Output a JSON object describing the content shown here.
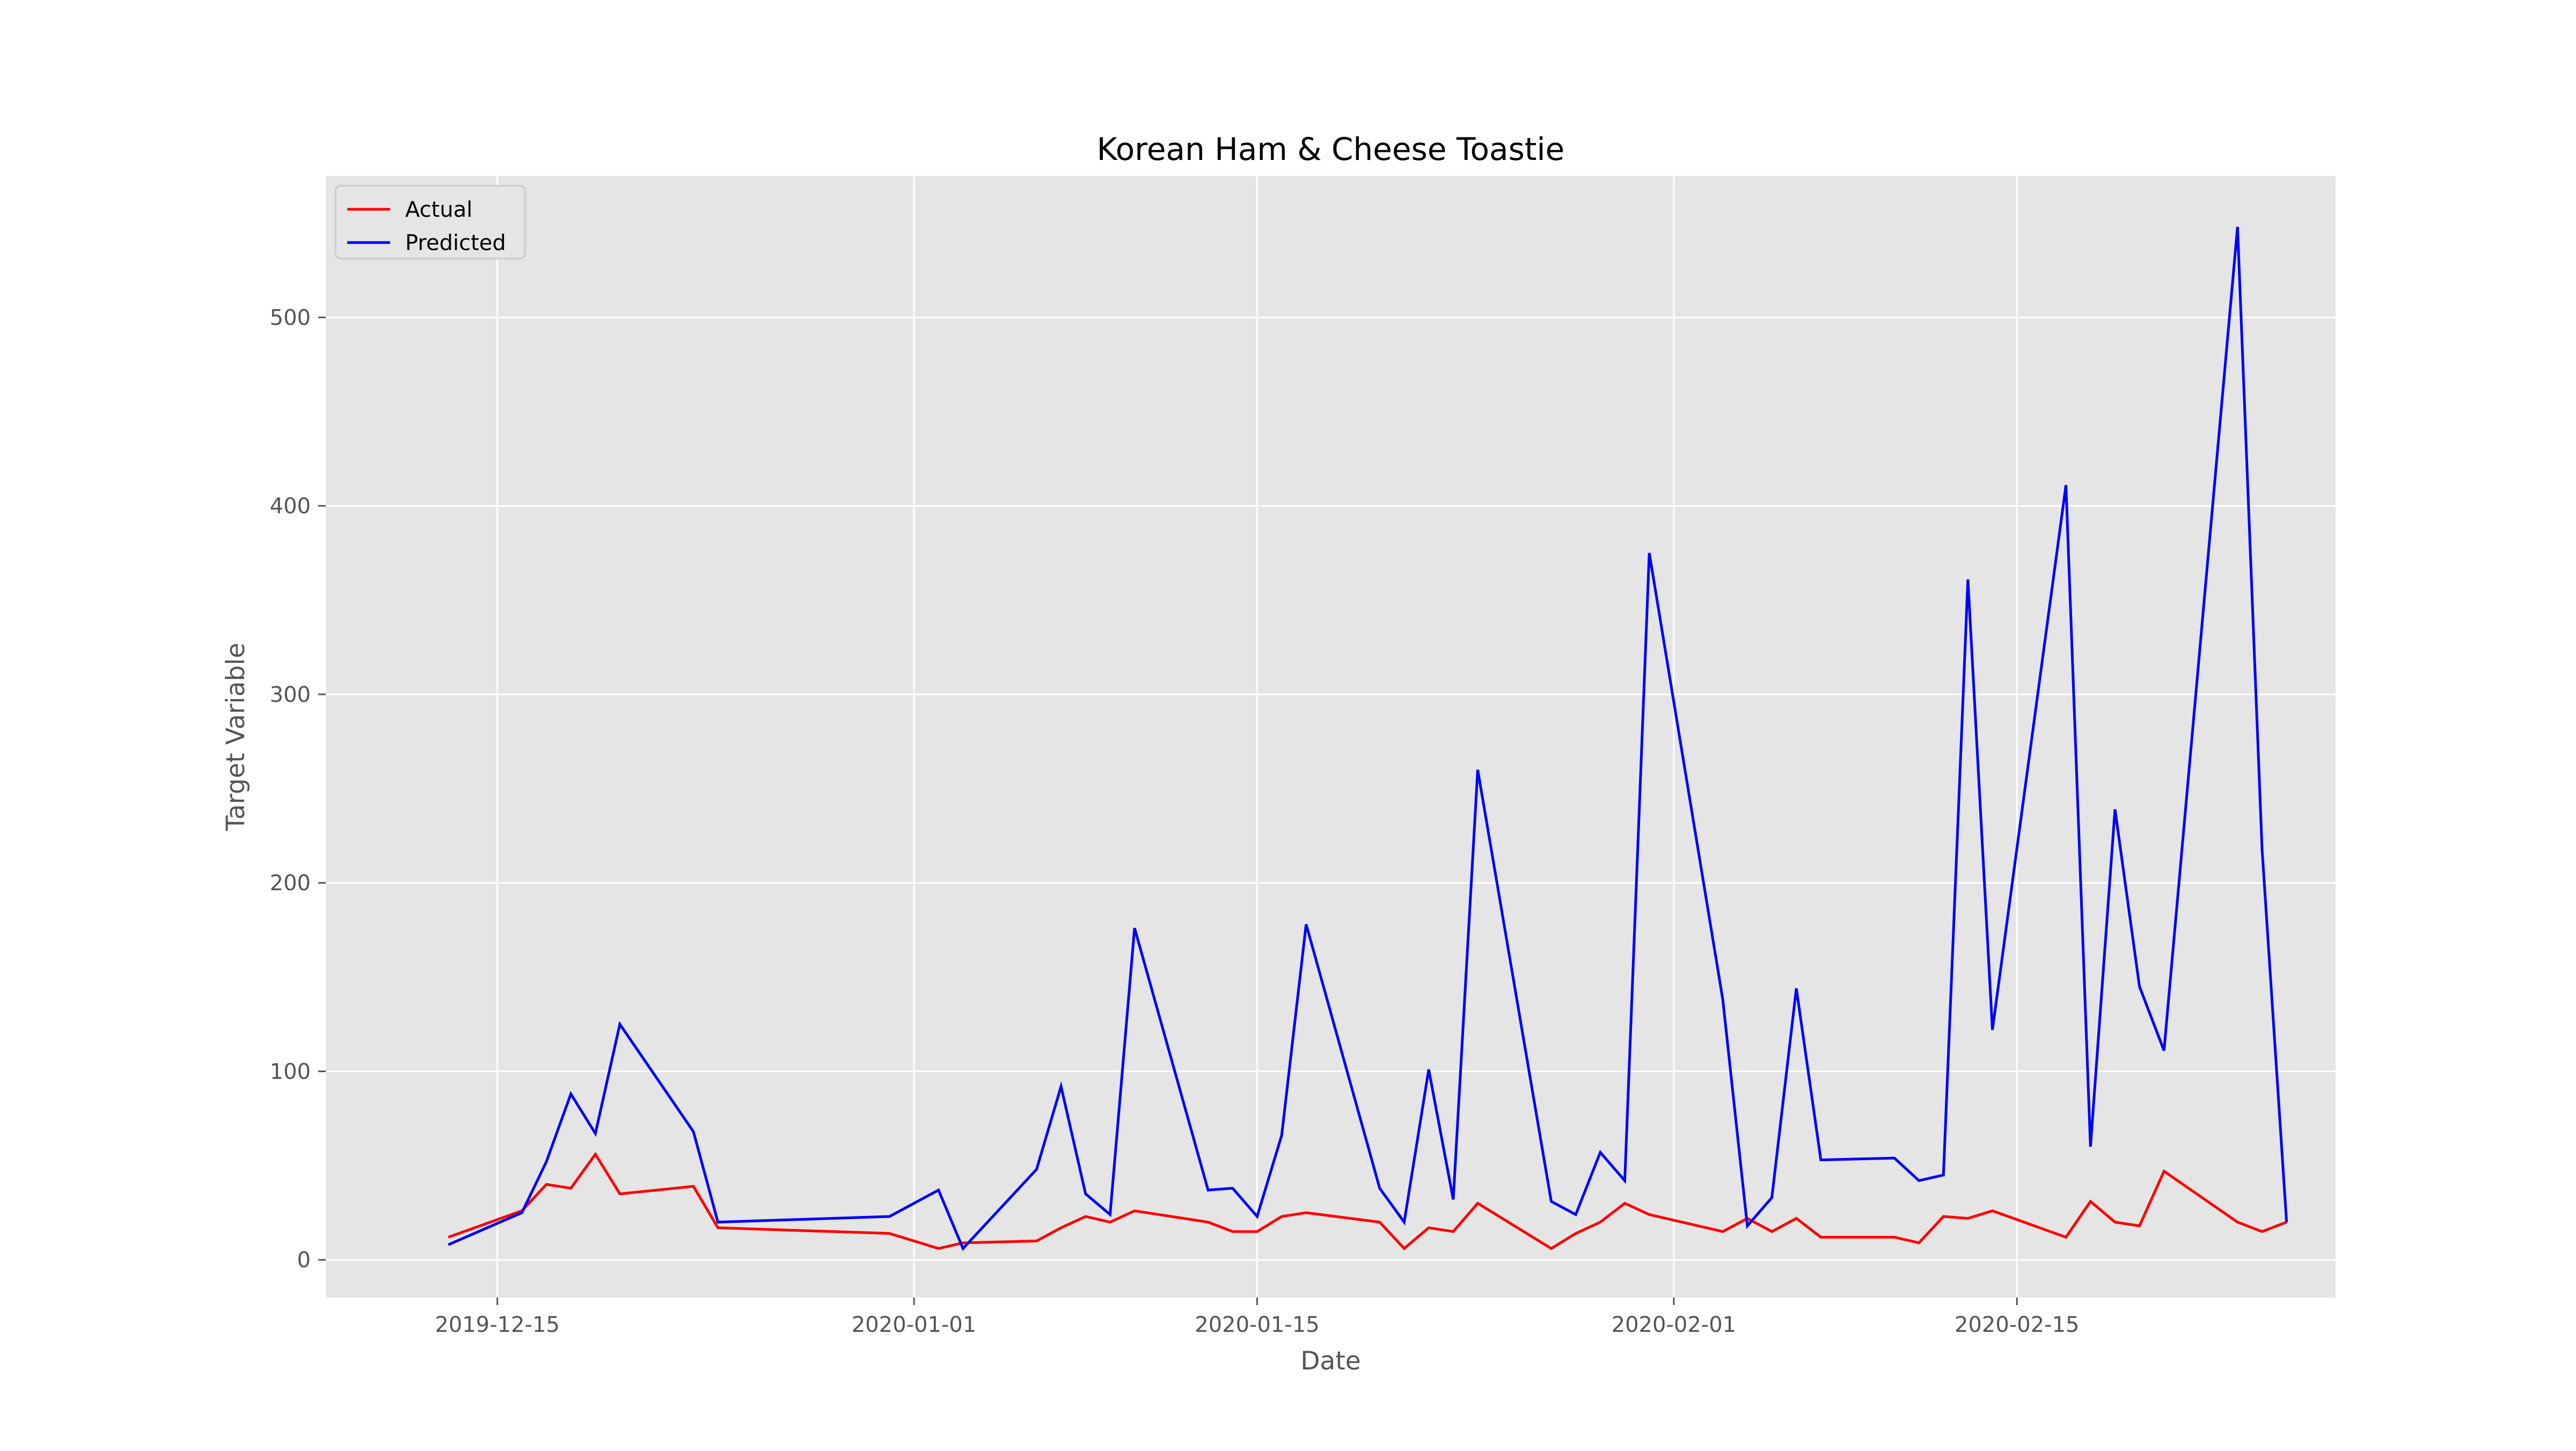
{
  "chart_data": {
    "type": "line",
    "title": "Korean Ham & Cheese Toastie",
    "xlabel": "Date",
    "ylabel": "Target Variable",
    "xlim": [
      "2019-12-08",
      "2020-02-28"
    ],
    "ylim": [
      -20,
      575
    ],
    "x_ticks": [
      "2019-12-15",
      "2020-01-01",
      "2020-01-15",
      "2020-02-01",
      "2020-02-15"
    ],
    "y_ticks": [
      0,
      100,
      200,
      300,
      400,
      500
    ],
    "grid": true,
    "legend": "top-left",
    "series": [
      {
        "name": "Actual",
        "color": "#ff0000",
        "points": [
          [
            "2019-12-13",
            12
          ],
          [
            "2019-12-16",
            26
          ],
          [
            "2019-12-17",
            40
          ],
          [
            "2019-12-18",
            38
          ],
          [
            "2019-12-19",
            56
          ],
          [
            "2019-12-20",
            35
          ],
          [
            "2019-12-23",
            39
          ],
          [
            "2019-12-24",
            17
          ],
          [
            "2019-12-31",
            14
          ],
          [
            "2020-01-02",
            6
          ],
          [
            "2020-01-03",
            9
          ],
          [
            "2020-01-06",
            10
          ],
          [
            "2020-01-07",
            17
          ],
          [
            "2020-01-08",
            23
          ],
          [
            "2020-01-09",
            20
          ],
          [
            "2020-01-10",
            26
          ],
          [
            "2020-01-13",
            20
          ],
          [
            "2020-01-14",
            15
          ],
          [
            "2020-01-15",
            15
          ],
          [
            "2020-01-16",
            23
          ],
          [
            "2020-01-17",
            25
          ],
          [
            "2020-01-20",
            20
          ],
          [
            "2020-01-21",
            6
          ],
          [
            "2020-01-22",
            17
          ],
          [
            "2020-01-23",
            15
          ],
          [
            "2020-01-24",
            30
          ],
          [
            "2020-01-27",
            6
          ],
          [
            "2020-01-28",
            14
          ],
          [
            "2020-01-29",
            20
          ],
          [
            "2020-01-30",
            30
          ],
          [
            "2020-01-31",
            24
          ],
          [
            "2020-02-03",
            15
          ],
          [
            "2020-02-04",
            22
          ],
          [
            "2020-02-05",
            15
          ],
          [
            "2020-02-06",
            22
          ],
          [
            "2020-02-07",
            12
          ],
          [
            "2020-02-10",
            12
          ],
          [
            "2020-02-11",
            9
          ],
          [
            "2020-02-12",
            23
          ],
          [
            "2020-02-13",
            22
          ],
          [
            "2020-02-14",
            26
          ],
          [
            "2020-02-17",
            12
          ],
          [
            "2020-02-18",
            31
          ],
          [
            "2020-02-19",
            20
          ],
          [
            "2020-02-20",
            18
          ],
          [
            "2020-02-21",
            47
          ],
          [
            "2020-02-24",
            20
          ],
          [
            "2020-02-25",
            15
          ],
          [
            "2020-02-26",
            20
          ]
        ]
      },
      {
        "name": "Predicted",
        "color": "#0000ff",
        "points": [
          [
            "2019-12-13",
            8
          ],
          [
            "2019-12-16",
            25
          ],
          [
            "2019-12-17",
            52
          ],
          [
            "2019-12-18",
            88
          ],
          [
            "2019-12-19",
            67
          ],
          [
            "2019-12-20",
            125
          ],
          [
            "2019-12-23",
            68
          ],
          [
            "2019-12-24",
            20
          ],
          [
            "2019-12-31",
            23
          ],
          [
            "2020-01-02",
            37
          ],
          [
            "2020-01-03",
            6
          ],
          [
            "2020-01-06",
            48
          ],
          [
            "2020-01-07",
            92
          ],
          [
            "2020-01-08",
            35
          ],
          [
            "2020-01-09",
            24
          ],
          [
            "2020-01-10",
            176
          ],
          [
            "2020-01-13",
            37
          ],
          [
            "2020-01-14",
            38
          ],
          [
            "2020-01-15",
            23
          ],
          [
            "2020-01-16",
            66
          ],
          [
            "2020-01-17",
            178
          ],
          [
            "2020-01-20",
            38
          ],
          [
            "2020-01-21",
            20
          ],
          [
            "2020-01-22",
            101
          ],
          [
            "2020-01-23",
            32
          ],
          [
            "2020-01-24",
            260
          ],
          [
            "2020-01-27",
            31
          ],
          [
            "2020-01-28",
            24
          ],
          [
            "2020-01-29",
            57
          ],
          [
            "2020-01-30",
            42
          ],
          [
            "2020-01-31",
            375
          ],
          [
            "2020-02-03",
            138
          ],
          [
            "2020-02-04",
            18
          ],
          [
            "2020-02-05",
            33
          ],
          [
            "2020-02-06",
            144
          ],
          [
            "2020-02-07",
            53
          ],
          [
            "2020-02-10",
            54
          ],
          [
            "2020-02-11",
            42
          ],
          [
            "2020-02-12",
            45
          ],
          [
            "2020-02-13",
            361
          ],
          [
            "2020-02-14",
            122
          ],
          [
            "2020-02-17",
            411
          ],
          [
            "2020-02-18",
            60
          ],
          [
            "2020-02-19",
            239
          ],
          [
            "2020-02-20",
            145
          ],
          [
            "2020-02-21",
            111
          ],
          [
            "2020-02-24",
            548
          ],
          [
            "2020-02-25",
            218
          ],
          [
            "2020-02-26",
            20
          ]
        ]
      }
    ]
  }
}
